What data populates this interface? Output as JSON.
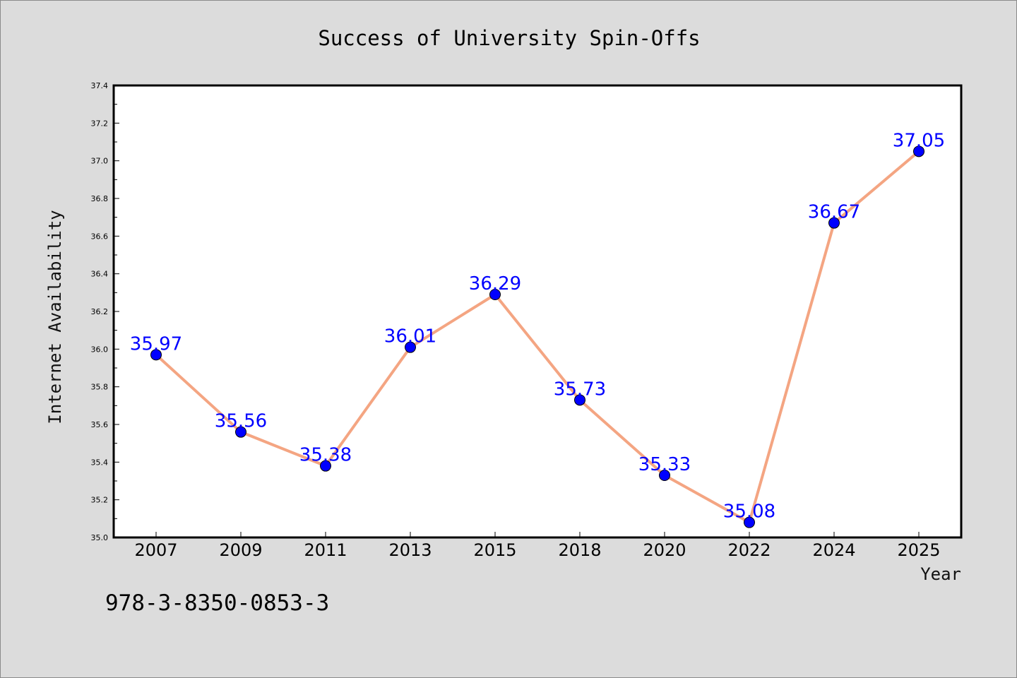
{
  "chart_data": {
    "type": "line",
    "title": "Success of University Spin-Offs",
    "xlabel": "Year",
    "ylabel": "Internet Availability",
    "categories": [
      "2007",
      "2009",
      "2011",
      "2013",
      "2015",
      "2018",
      "2020",
      "2022",
      "2024",
      "2025"
    ],
    "series": [
      {
        "values": [
          35.97,
          35.56,
          35.38,
          36.01,
          36.29,
          35.73,
          35.33,
          35.08,
          36.67,
          37.05
        ],
        "data_labels": [
          "35.97",
          "35.56",
          "35.38",
          "36.01",
          "36.29",
          "35.73",
          "35.33",
          "35.08",
          "36.67",
          "37.05"
        ],
        "line_color": "#f4a582",
        "marker_color": "#0000ff",
        "label_color": "#0000ff"
      }
    ],
    "ylim": [
      35.0,
      37.4
    ],
    "yticks": [
      "35.0",
      "35.2",
      "35.4",
      "35.6",
      "35.8",
      "36.0",
      "36.2",
      "36.4",
      "36.6",
      "36.8",
      "37.0",
      "37.2",
      "37.4"
    ],
    "grid": false,
    "legend": "none"
  },
  "annotation": {
    "isbn": "978-3-8350-0853-3"
  },
  "colors": {
    "background": "#dcdcdc",
    "plot_background": "#ffffff",
    "axis": "#000000"
  }
}
